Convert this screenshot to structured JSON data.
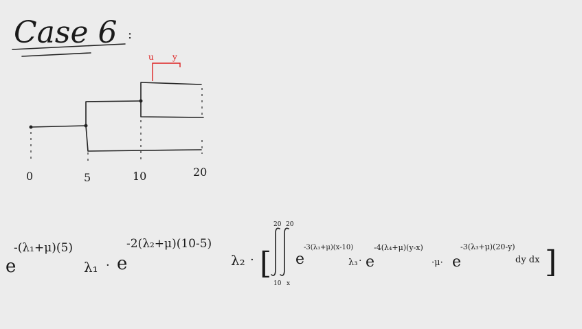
{
  "title": "Case 6",
  "title_colon": ":",
  "diagram": {
    "top_labels": [
      "u",
      "y"
    ],
    "ticks": [
      "0",
      "5",
      "10",
      "20"
    ]
  },
  "formula": {
    "e1_base": "e",
    "e1_exp": "-(λ₁+μ)(5)",
    "l1": "λ₁",
    "dot1": "·",
    "e2_base": "e",
    "e2_exp": "-2(λ₂+μ)(10-5)",
    "l2": "λ₂",
    "dot2": "·",
    "bracket_open": "[",
    "int_upper_1": "20",
    "int_upper_2": "20",
    "int_lower_1": "10",
    "int_lower_2": "x",
    "e3_base": "e",
    "e3_exp": "-3(λ₃+μ)(x-10)",
    "l3": "λ₃",
    "dot3": "·",
    "e4_base": "e",
    "e4_exp": "-4(λ₄+μ)(y-x)",
    "mu": "·μ·",
    "e5_base": "e",
    "e5_exp": "-3(λ₃+μ)(20-y)",
    "dydx": "dy dx",
    "bracket_close": "]"
  }
}
